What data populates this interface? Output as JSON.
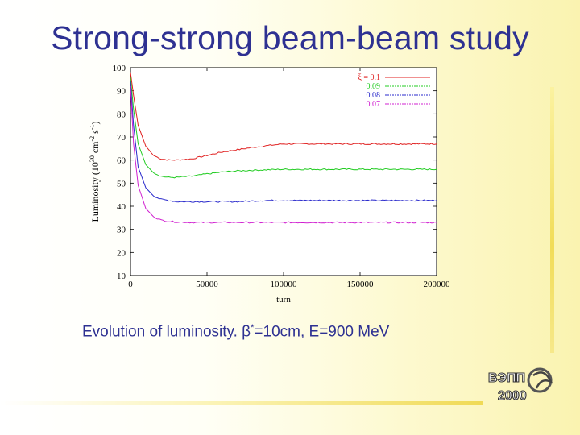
{
  "slide": {
    "title": "Strong-strong beam-beam study",
    "caption_prefix": "Evolution of luminosity. β",
    "caption_sup": "*",
    "caption_suffix": "=10cm, E=900 MeV"
  },
  "logo": {
    "line1": "ВЭПП",
    "line2": "2000"
  },
  "chart_data": {
    "type": "line",
    "xlabel": "turn",
    "ylabel": "Luminosity (10",
    "ylabel_exp": "30",
    "ylabel_rest": "cm",
    "ylabel_exp2": "-2",
    "ylabel_rest2": "s",
    "ylabel_exp3": "-1",
    "ylabel_end": ")",
    "xlim": [
      0,
      200000
    ],
    "ylim": [
      10,
      100
    ],
    "xticks": [
      "0",
      "50000",
      "100000",
      "150000",
      "200000"
    ],
    "yticks": [
      "10",
      "20",
      "30",
      "40",
      "50",
      "60",
      "70",
      "80",
      "90",
      "100"
    ],
    "legend_position": "top-right",
    "legend_symbol": "ξ",
    "legend_prefix": " = ",
    "series": [
      {
        "name": "0.1",
        "color": "#e02020",
        "x": [
          0,
          2000,
          5000,
          10000,
          15000,
          20000,
          25000,
          30000,
          40000,
          50000,
          60000,
          70000,
          80000,
          90000,
          100000,
          120000,
          140000,
          160000,
          180000,
          200000
        ],
        "y": [
          98,
          88,
          75,
          66,
          62,
          60.5,
          60,
          60,
          60.5,
          62,
          63.5,
          64.5,
          65.5,
          66.3,
          67,
          67,
          67,
          67,
          67,
          67
        ]
      },
      {
        "name": "0.09",
        "color": "#22cc22",
        "x": [
          0,
          2000,
          5000,
          10000,
          15000,
          20000,
          25000,
          30000,
          40000,
          50000,
          60000,
          70000,
          80000,
          90000,
          100000,
          120000,
          140000,
          160000,
          180000,
          200000
        ],
        "y": [
          96,
          82,
          67,
          58,
          54.5,
          53,
          52.5,
          52.5,
          53,
          54,
          54.8,
          55.3,
          55.6,
          55.8,
          56,
          56,
          56,
          56,
          56,
          56
        ]
      },
      {
        "name": "0.08",
        "color": "#2a2acc",
        "x": [
          0,
          2000,
          5000,
          10000,
          15000,
          20000,
          25000,
          30000,
          40000,
          50000,
          60000,
          70000,
          80000,
          90000,
          100000,
          120000,
          140000,
          160000,
          180000,
          200000
        ],
        "y": [
          94,
          75,
          57,
          48,
          44.5,
          43,
          42.5,
          42,
          42,
          42,
          42,
          42,
          42.3,
          42.5,
          42.5,
          42.5,
          42.5,
          42.5,
          42.5,
          42.5
        ]
      },
      {
        "name": "0.07",
        "color": "#d020d0",
        "x": [
          0,
          2000,
          5000,
          10000,
          15000,
          20000,
          25000,
          30000,
          40000,
          50000,
          60000,
          70000,
          80000,
          90000,
          100000,
          120000,
          140000,
          160000,
          180000,
          200000
        ],
        "y": [
          92,
          67,
          49,
          39,
          35.5,
          34,
          33.5,
          33.2,
          33,
          33,
          33,
          33,
          33,
          33,
          33,
          33,
          33,
          33,
          33,
          33
        ]
      }
    ]
  }
}
